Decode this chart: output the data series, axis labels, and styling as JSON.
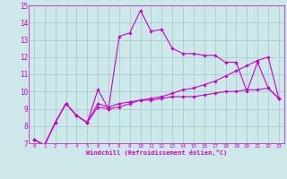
{
  "xlabel": "Windchill (Refroidissement éolien,°C)",
  "background_color": "#cce8e8",
  "line_color": "#cc00cc",
  "grid_color": "#aacccc",
  "xlim": [
    -0.5,
    23.5
  ],
  "ylim": [
    7,
    15
  ],
  "x_ticks": [
    0,
    1,
    2,
    3,
    4,
    5,
    6,
    7,
    8,
    9,
    10,
    11,
    12,
    13,
    14,
    15,
    16,
    17,
    18,
    19,
    20,
    21,
    22,
    23
  ],
  "y_ticks": [
    7,
    8,
    9,
    10,
    11,
    12,
    13,
    14,
    15
  ],
  "series": [
    {
      "x": [
        0,
        1,
        2,
        3,
        4,
        5,
        6,
        7,
        8,
        9,
        10,
        11,
        12,
        13,
        14,
        15,
        16,
        17,
        18,
        19,
        20,
        21,
        22,
        23
      ],
      "y": [
        7.2,
        6.9,
        8.2,
        9.3,
        8.6,
        8.2,
        10.1,
        9.0,
        13.2,
        13.4,
        14.7,
        13.5,
        13.6,
        12.5,
        12.2,
        12.2,
        12.1,
        12.1,
        11.7,
        11.7,
        10.0,
        11.7,
        10.2,
        9.6
      ]
    },
    {
      "x": [
        0,
        1,
        2,
        3,
        4,
        5,
        6,
        7,
        8,
        9,
        10,
        11,
        12,
        13,
        14,
        15,
        16,
        17,
        18,
        19,
        20,
        21,
        22,
        23
      ],
      "y": [
        7.2,
        6.9,
        8.2,
        9.3,
        8.6,
        8.2,
        9.3,
        9.1,
        9.3,
        9.4,
        9.5,
        9.5,
        9.6,
        9.7,
        9.7,
        9.7,
        9.8,
        9.9,
        10.0,
        10.0,
        10.1,
        10.1,
        10.2,
        9.6
      ]
    },
    {
      "x": [
        0,
        1,
        2,
        3,
        4,
        5,
        6,
        7,
        8,
        9,
        10,
        11,
        12,
        13,
        14,
        15,
        16,
        17,
        18,
        19,
        20,
        21,
        22,
        23
      ],
      "y": [
        7.2,
        6.9,
        8.2,
        9.3,
        8.6,
        8.2,
        9.1,
        9.0,
        9.1,
        9.3,
        9.5,
        9.6,
        9.7,
        9.9,
        10.1,
        10.2,
        10.4,
        10.6,
        10.9,
        11.2,
        11.5,
        11.8,
        12.0,
        9.6
      ]
    }
  ]
}
